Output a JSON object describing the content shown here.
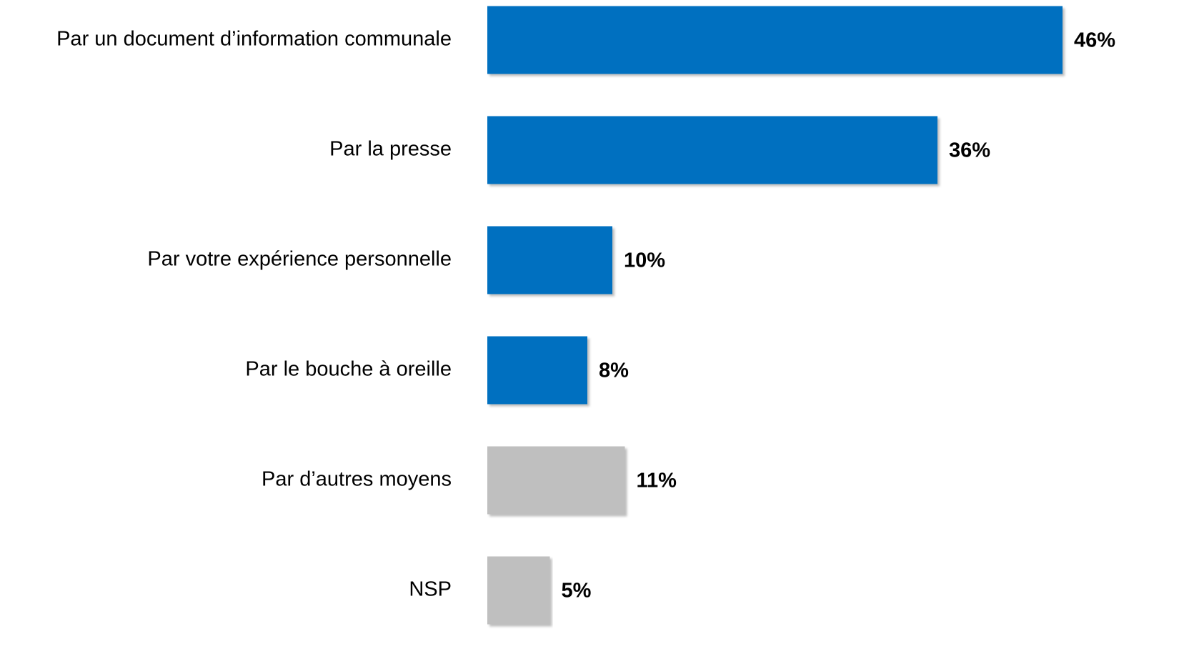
{
  "chart_data": {
    "type": "barh",
    "categories": [
      "Par un document d’information communale",
      "Par la presse",
      "Par votre expérience personnelle",
      "Par le bouche à oreille",
      "Par d’autres moyens",
      "NSP"
    ],
    "values": [
      46,
      36,
      10,
      8,
      11,
      5
    ],
    "value_labels": [
      "46%",
      "36%",
      "10%",
      "8%",
      "11%",
      "5%"
    ],
    "colors": [
      "#0070c0",
      "#0070c0",
      "#0070c0",
      "#0070c0",
      "#bfbfbf",
      "#bfbfbf"
    ],
    "xlim": [
      0,
      50
    ]
  }
}
